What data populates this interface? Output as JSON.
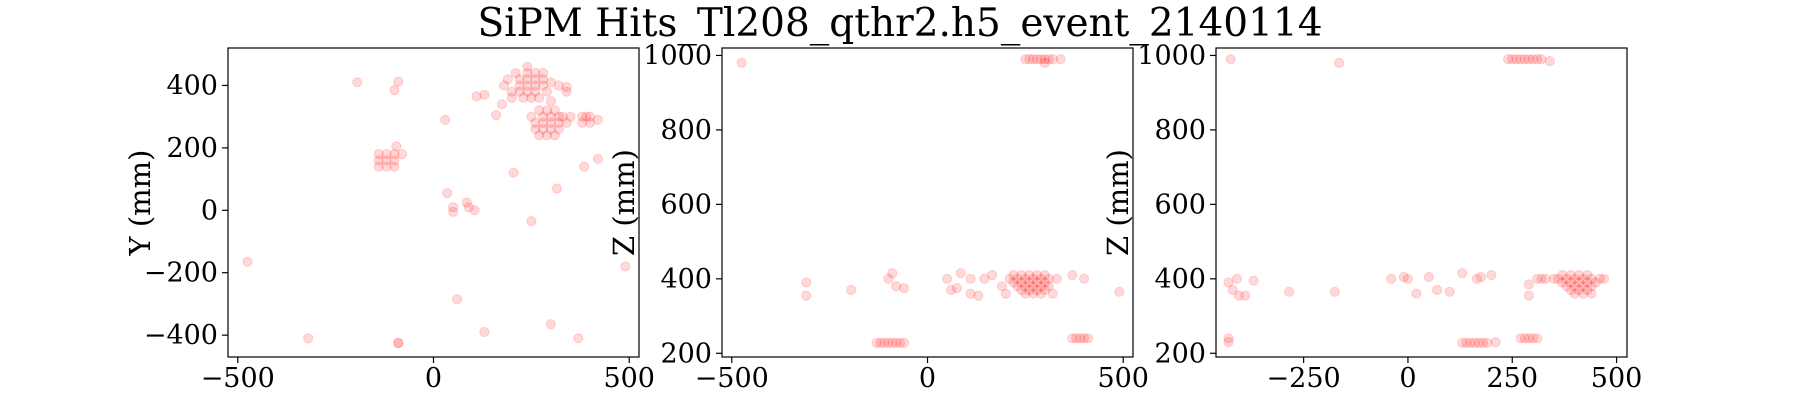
{
  "figure": {
    "title": "SiPM Hits_Tl208_qthr2.h5_event_2140114",
    "point_color": "#ff0000",
    "point_alpha": 0.15
  },
  "chart_data": [
    {
      "type": "scatter",
      "title": "",
      "xlabel": "",
      "ylabel": "Y (mm)",
      "xlim": [
        -525,
        525
      ],
      "ylim": [
        -470,
        520
      ],
      "xticks": [
        -500,
        0,
        500
      ],
      "yticks": [
        -400,
        -200,
        0,
        200,
        400
      ],
      "xtick_labels": [
        "−500",
        "0",
        "500"
      ],
      "ytick_labels": [
        "−400",
        "−200",
        "0",
        "200",
        "400"
      ],
      "grid": false,
      "points": [
        [
          -195,
          410
        ],
        [
          -90,
          412
        ],
        [
          -100,
          385
        ],
        [
          -95,
          205
        ],
        [
          -80,
          180
        ],
        [
          30,
          290
        ],
        [
          35,
          55
        ],
        [
          50,
          10
        ],
        [
          50,
          -5
        ],
        [
          85,
          25
        ],
        [
          90,
          10
        ],
        [
          105,
          0
        ],
        [
          110,
          365
        ],
        [
          130,
          370
        ],
        [
          160,
          305
        ],
        [
          175,
          340
        ],
        [
          205,
          120
        ],
        [
          250,
          -35
        ],
        [
          315,
          70
        ],
        [
          340,
          395
        ],
        [
          385,
          140
        ],
        [
          420,
          165
        ],
        [
          490,
          -180
        ],
        [
          -475,
          -165
        ],
        [
          60,
          -285
        ],
        [
          130,
          -390
        ],
        [
          300,
          -365
        ],
        [
          370,
          -410
        ],
        [
          -320,
          -410
        ],
        [
          -90,
          -425
        ],
        [
          -90,
          -425
        ],
        [
          -140,
          140
        ],
        [
          -140,
          160
        ],
        [
          -140,
          180
        ],
        [
          -120,
          140
        ],
        [
          -120,
          160
        ],
        [
          -120,
          180
        ],
        [
          -100,
          140
        ],
        [
          -100,
          160
        ],
        [
          -100,
          180
        ],
        [
          180,
          400
        ],
        [
          190,
          420
        ],
        [
          200,
          380
        ],
        [
          200,
          360
        ],
        [
          210,
          440
        ],
        [
          220,
          420
        ],
        [
          220,
          400
        ],
        [
          220,
          380
        ],
        [
          230,
          360
        ],
        [
          240,
          460
        ],
        [
          240,
          440
        ],
        [
          240,
          420
        ],
        [
          240,
          400
        ],
        [
          240,
          380
        ],
        [
          250,
          360
        ],
        [
          260,
          440
        ],
        [
          260,
          420
        ],
        [
          260,
          400
        ],
        [
          260,
          380
        ],
        [
          270,
          360
        ],
        [
          280,
          440
        ],
        [
          280,
          420
        ],
        [
          280,
          400
        ],
        [
          290,
          380
        ],
        [
          300,
          410
        ],
        [
          320,
          400
        ],
        [
          340,
          380
        ],
        [
          300,
          350
        ],
        [
          250,
          300
        ],
        [
          260,
          280
        ],
        [
          260,
          260
        ],
        [
          270,
          320
        ],
        [
          270,
          240
        ],
        [
          280,
          300
        ],
        [
          280,
          280
        ],
        [
          280,
          260
        ],
        [
          290,
          320
        ],
        [
          290,
          240
        ],
        [
          300,
          300
        ],
        [
          300,
          280
        ],
        [
          300,
          260
        ],
        [
          310,
          320
        ],
        [
          310,
          240
        ],
        [
          320,
          300
        ],
        [
          320,
          280
        ],
        [
          320,
          260
        ],
        [
          330,
          300
        ],
        [
          340,
          280
        ],
        [
          350,
          300
        ],
        [
          380,
          300
        ],
        [
          380,
          280
        ],
        [
          400,
          300
        ],
        [
          400,
          280
        ],
        [
          420,
          290
        ],
        [
          390,
          300
        ]
      ]
    },
    {
      "type": "scatter",
      "title": "",
      "xlabel": "",
      "ylabel": "Z (mm)",
      "xlim": [
        -525,
        525
      ],
      "ylim": [
        190,
        1020
      ],
      "xticks": [
        -500,
        0,
        500
      ],
      "yticks": [
        200,
        400,
        600,
        800,
        1000
      ],
      "xtick_labels": [
        "−500",
        "0",
        "500"
      ],
      "ytick_labels": [
        "200",
        "400",
        "600",
        "800",
        "1000"
      ],
      "grid": false,
      "points": [
        [
          -475,
          980
        ],
        [
          -310,
          390
        ],
        [
          -310,
          355
        ],
        [
          -195,
          370
        ],
        [
          -100,
          400
        ],
        [
          -90,
          415
        ],
        [
          -80,
          380
        ],
        [
          -60,
          375
        ],
        [
          50,
          400
        ],
        [
          60,
          370
        ],
        [
          75,
          375
        ],
        [
          85,
          415
        ],
        [
          110,
          400
        ],
        [
          110,
          360
        ],
        [
          130,
          355
        ],
        [
          145,
          400
        ],
        [
          165,
          410
        ],
        [
          370,
          410
        ],
        [
          400,
          400
        ],
        [
          490,
          365
        ],
        [
          -130,
          228
        ],
        [
          -120,
          228
        ],
        [
          -110,
          228
        ],
        [
          -100,
          228
        ],
        [
          -90,
          228
        ],
        [
          -80,
          228
        ],
        [
          -70,
          228
        ],
        [
          -60,
          228
        ],
        [
          210,
          400
        ],
        [
          220,
          390
        ],
        [
          220,
          410
        ],
        [
          230,
          400
        ],
        [
          230,
          380
        ],
        [
          240,
          410
        ],
        [
          240,
          390
        ],
        [
          240,
          370
        ],
        [
          250,
          400
        ],
        [
          250,
          380
        ],
        [
          250,
          360
        ],
        [
          260,
          410
        ],
        [
          260,
          390
        ],
        [
          260,
          370
        ],
        [
          270,
          400
        ],
        [
          270,
          380
        ],
        [
          270,
          360
        ],
        [
          280,
          410
        ],
        [
          280,
          390
        ],
        [
          280,
          370
        ],
        [
          290,
          400
        ],
        [
          290,
          380
        ],
        [
          290,
          360
        ],
        [
          300,
          410
        ],
        [
          300,
          390
        ],
        [
          300,
          370
        ],
        [
          310,
          400
        ],
        [
          310,
          380
        ],
        [
          320,
          360
        ],
        [
          330,
          400
        ],
        [
          200,
          360
        ],
        [
          190,
          380
        ],
        [
          250,
          990
        ],
        [
          260,
          990
        ],
        [
          270,
          990
        ],
        [
          280,
          990
        ],
        [
          290,
          990
        ],
        [
          300,
          990
        ],
        [
          310,
          990
        ],
        [
          320,
          990
        ],
        [
          340,
          990
        ],
        [
          300,
          980
        ],
        [
          370,
          240
        ],
        [
          380,
          240
        ],
        [
          390,
          240
        ],
        [
          400,
          240
        ],
        [
          410,
          240
        ]
      ]
    },
    {
      "type": "scatter",
      "title": "",
      "xlabel": "",
      "ylabel": "Z (mm)",
      "xlim": [
        -460,
        525
      ],
      "ylim": [
        190,
        1020
      ],
      "xticks": [
        -250,
        0,
        250,
        500
      ],
      "yticks": [
        200,
        400,
        600,
        800,
        1000
      ],
      "xtick_labels": [
        "−250",
        "0",
        "250",
        "500"
      ],
      "ytick_labels": [
        "200",
        "400",
        "600",
        "800",
        "1000"
      ],
      "grid": false,
      "points": [
        [
          -425,
          990
        ],
        [
          -165,
          980
        ],
        [
          -430,
          390
        ],
        [
          -420,
          370
        ],
        [
          -410,
          400
        ],
        [
          -405,
          355
        ],
        [
          -390,
          355
        ],
        [
          -370,
          395
        ],
        [
          -285,
          365
        ],
        [
          -175,
          365
        ],
        [
          -40,
          400
        ],
        [
          -10,
          405
        ],
        [
          0,
          400
        ],
        [
          20,
          360
        ],
        [
          50,
          405
        ],
        [
          70,
          370
        ],
        [
          100,
          365
        ],
        [
          130,
          415
        ],
        [
          165,
          400
        ],
        [
          175,
          405
        ],
        [
          200,
          410
        ],
        [
          290,
          385
        ],
        [
          290,
          355
        ],
        [
          -430,
          240
        ],
        [
          -430,
          230
        ],
        [
          130,
          228
        ],
        [
          140,
          228
        ],
        [
          150,
          228
        ],
        [
          160,
          228
        ],
        [
          170,
          228
        ],
        [
          180,
          228
        ],
        [
          190,
          228
        ],
        [
          210,
          230
        ],
        [
          270,
          240
        ],
        [
          280,
          240
        ],
        [
          290,
          240
        ],
        [
          300,
          240
        ],
        [
          310,
          240
        ],
        [
          240,
          990
        ],
        [
          250,
          990
        ],
        [
          260,
          990
        ],
        [
          270,
          990
        ],
        [
          280,
          990
        ],
        [
          290,
          990
        ],
        [
          300,
          990
        ],
        [
          310,
          990
        ],
        [
          320,
          990
        ],
        [
          340,
          985
        ],
        [
          350,
          400
        ],
        [
          360,
          400
        ],
        [
          370,
          390
        ],
        [
          370,
          410
        ],
        [
          380,
          400
        ],
        [
          380,
          380
        ],
        [
          390,
          410
        ],
        [
          390,
          390
        ],
        [
          390,
          370
        ],
        [
          400,
          400
        ],
        [
          400,
          380
        ],
        [
          400,
          360
        ],
        [
          410,
          410
        ],
        [
          410,
          390
        ],
        [
          410,
          370
        ],
        [
          420,
          400
        ],
        [
          420,
          380
        ],
        [
          420,
          360
        ],
        [
          430,
          410
        ],
        [
          430,
          390
        ],
        [
          430,
          370
        ],
        [
          440,
          400
        ],
        [
          440,
          380
        ],
        [
          440,
          360
        ],
        [
          450,
          390
        ],
        [
          460,
          400
        ],
        [
          470,
          400
        ],
        [
          330,
          400
        ],
        [
          310,
          400
        ],
        [
          320,
          400
        ]
      ]
    }
  ]
}
